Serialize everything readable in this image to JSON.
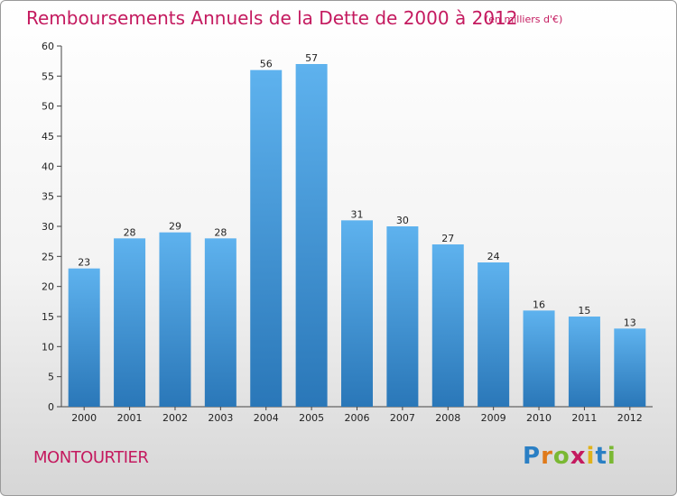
{
  "chart_data": {
    "type": "bar",
    "title": "Remboursements Annuels de la Dette de 2000 à 2012",
    "subtitle": "(en milliers d'€)",
    "categories": [
      "2000",
      "2001",
      "2002",
      "2003",
      "2004",
      "2005",
      "2006",
      "2007",
      "2008",
      "2009",
      "2010",
      "2011",
      "2012"
    ],
    "values": [
      23,
      28,
      29,
      28,
      56,
      57,
      31,
      30,
      27,
      24,
      16,
      15,
      13
    ],
    "ylim": [
      0,
      60
    ],
    "yticks": [
      0,
      5,
      10,
      15,
      20,
      25,
      30,
      35,
      40,
      45,
      50,
      55,
      60
    ],
    "grid": false,
    "bar_color": "#4a9fe0",
    "text_color": "#c41a5f"
  },
  "commune": "MONTOURTIER",
  "logo": {
    "letters": [
      {
        "char": "P",
        "color": "#2a7fc4"
      },
      {
        "char": "r",
        "color": "#e07a1a"
      },
      {
        "char": "o",
        "color": "#7ab833"
      },
      {
        "char": "x",
        "color": "#c41a5f"
      },
      {
        "char": "i",
        "color": "#e0b21a"
      },
      {
        "char": "t",
        "color": "#2a7fc4"
      },
      {
        "char": "i",
        "color": "#7ab833"
      }
    ]
  }
}
